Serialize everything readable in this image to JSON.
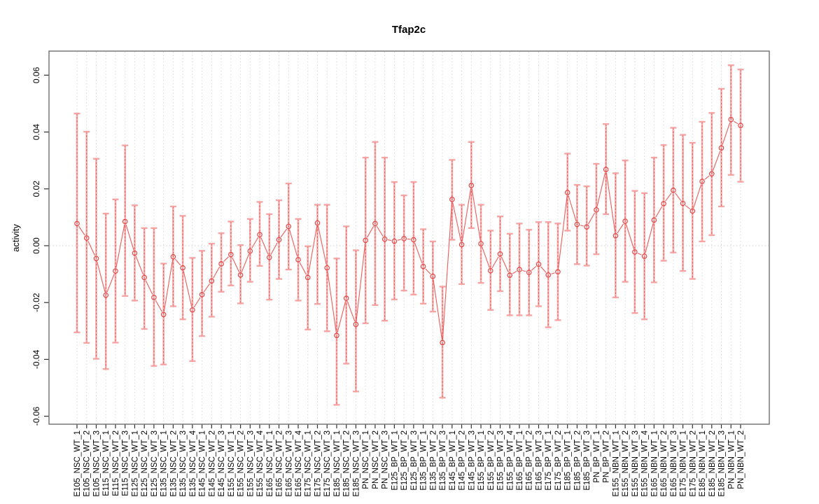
{
  "chart_data": {
    "type": "scatter",
    "title": "Tfap2c",
    "xlabel": "",
    "ylabel": "activity",
    "ylim": [
      -0.065,
      0.065
    ],
    "yticks": [
      -0.06,
      -0.04,
      -0.02,
      0,
      0.02,
      0.04,
      0.06
    ],
    "ytick_labels": [
      "-0.06",
      "-0.04",
      "-0.02",
      "0.00",
      "0.02",
      "0.04",
      "0.06"
    ],
    "grid": "vertical dotted gridline at every category; dotted horizontal reference line at y=0",
    "legend": "none",
    "point_style": "open circles connected by line segments, with asymmetric error bars",
    "categories": [
      "E105_NSC_WT_1",
      "E105_NSC_WT_2",
      "E105_NSC_WT_3",
      "E115_NSC_WT_1",
      "E115_NSC_WT_2",
      "E115_NSC_WT_3",
      "E125_NSC_WT_1",
      "E125_NSC_WT_2",
      "E125_NSC_WT_3",
      "E135_NSC_WT_1",
      "E135_NSC_WT_2",
      "E135_NSC_WT_3",
      "E135_NSC_WT_4",
      "E145_NSC_WT_1",
      "E145_NSC_WT_2",
      "E145_NSC_WT_3",
      "E155_NSC_WT_1",
      "E155_NSC_WT_2",
      "E155_NSC_WT_3",
      "E155_NSC_WT_4",
      "E165_NSC_WT_1",
      "E165_NSC_WT_2",
      "E165_NSC_WT_3",
      "E165_NSC_WT_4",
      "E175_NSC_WT_1",
      "E175_NSC_WT_2",
      "E175_NSC_WT_3",
      "E185_NSC_WT_1",
      "E185_NSC_WT_2",
      "E185_NSC_WT_3",
      "PN_NSC_WT_1",
      "PN_NSC_WT_2",
      "PN_NSC_WT_3",
      "E125_BP_WT_1",
      "E125_BP_WT_2",
      "E125_BP_WT_3",
      "E135_BP_WT_1",
      "E135_BP_WT_2",
      "E135_BP_WT_3",
      "E145_BP_WT_1",
      "E145_BP_WT_2",
      "E145_BP_WT_3",
      "E155_BP_WT_1",
      "E155_BP_WT_2",
      "E155_BP_WT_3",
      "E155_BP_WT_4",
      "E165_BP_WT_1",
      "E165_BP_WT_2",
      "E165_BP_WT_3",
      "E175_BP_WT_1",
      "E175_BP_WT_2",
      "E185_BP_WT_1",
      "E185_BP_WT_2",
      "E185_BP_WT_3",
      "PN_BP_WT_1",
      "PN_BP_WT_2",
      "E155_NBN_WT_1",
      "E155_NBN_WT_2",
      "E155_NBN_WT_3",
      "E155_NBN_WT_4",
      "E165_NBN_WT_1",
      "E165_NBN_WT_2",
      "E165_NBN_WT_3",
      "E175_NBN_WT_1",
      "E175_NBN_WT_2",
      "E185_NBN_WT_1",
      "E185_NBN_WT_2",
      "E185_NBN_WT_3",
      "PN_NBN_WT_1",
      "PN_NBN_WT_2"
    ],
    "series": [
      {
        "name": "activity",
        "values": [
          0.0078,
          0.0027,
          -0.0045,
          -0.0174,
          -0.0089,
          0.0085,
          -0.0026,
          -0.0112,
          -0.0182,
          -0.0242,
          -0.0039,
          -0.0078,
          -0.0226,
          -0.0172,
          -0.0124,
          -0.0064,
          -0.0031,
          -0.0103,
          -0.0019,
          0.0039,
          -0.0041,
          0.0021,
          0.0068,
          -0.0049,
          -0.0112,
          0.008,
          -0.0078,
          -0.0316,
          -0.0185,
          -0.0277,
          0.0019,
          0.0078,
          0.0023,
          0.0016,
          0.0025,
          0.0021,
          -0.0073,
          -0.0108,
          -0.0341,
          0.0163,
          0.0004,
          0.0212,
          0.0007,
          -0.0088,
          -0.0029,
          -0.0104,
          -0.0084,
          -0.0094,
          -0.0065,
          -0.0103,
          -0.0092,
          0.0187,
          0.0075,
          0.0066,
          0.0126,
          0.0268,
          0.0035,
          0.0086,
          -0.0022,
          -0.0037,
          0.009,
          0.0148,
          0.0195,
          0.0149,
          0.0122,
          0.0226,
          0.0253,
          0.0344,
          0.0444,
          0.0423
        ],
        "lower": [
          -0.0305,
          -0.0342,
          -0.0398,
          -0.0434,
          -0.0341,
          -0.0177,
          -0.0193,
          -0.0293,
          -0.0423,
          -0.0418,
          -0.0213,
          -0.0259,
          -0.0406,
          -0.0318,
          -0.025,
          -0.0162,
          -0.014,
          -0.0203,
          -0.0127,
          -0.0071,
          -0.019,
          -0.0117,
          -0.0084,
          -0.0193,
          -0.0295,
          -0.0205,
          -0.0301,
          -0.056,
          -0.0415,
          -0.0513,
          -0.0273,
          -0.0209,
          -0.0264,
          -0.0189,
          -0.0158,
          -0.0172,
          -0.0204,
          -0.0232,
          -0.0535,
          0.0021,
          -0.0135,
          0.0062,
          -0.0131,
          -0.0226,
          -0.016,
          -0.0245,
          -0.0245,
          -0.0245,
          -0.0213,
          -0.0287,
          -0.0262,
          0.0053,
          -0.0065,
          -0.007,
          -0.003,
          0.0111,
          -0.0182,
          -0.0127,
          -0.0237,
          -0.0259,
          -0.0129,
          -0.0053,
          -0.0024,
          -0.0089,
          -0.0117,
          0.0015,
          0.0037,
          0.0138,
          0.0249,
          0.0225
        ],
        "upper": [
          0.0465,
          0.0401,
          0.0306,
          0.0113,
          0.0163,
          0.0353,
          0.0142,
          0.0062,
          0.0062,
          -0.0063,
          0.0138,
          0.0105,
          -0.0043,
          -0.0018,
          0.0007,
          0.0044,
          0.0085,
          0.0002,
          0.0094,
          0.0154,
          0.0111,
          0.016,
          0.0219,
          0.0094,
          -0.0002,
          0.0144,
          0.0144,
          -0.0045,
          0.0068,
          -0.0016,
          0.031,
          0.0365,
          0.031,
          0.0224,
          0.0177,
          0.0224,
          0.0058,
          0.0015,
          -0.0144,
          0.0302,
          0.0144,
          0.0365,
          0.0144,
          0.0053,
          0.0103,
          0.0042,
          0.0078,
          0.0056,
          0.0083,
          0.0083,
          0.0078,
          0.0324,
          0.0214,
          0.0209,
          0.0288,
          0.0428,
          0.0255,
          0.03,
          0.0193,
          0.0185,
          0.031,
          0.0354,
          0.0415,
          0.039,
          0.0362,
          0.0436,
          0.0467,
          0.0552,
          0.0635,
          0.062
        ]
      }
    ],
    "colors": {
      "errorbar": "#f5a0a0",
      "errorbar_dash": "#e05050",
      "point": "#e04848",
      "line": "#ea5c5c",
      "grid": "#d9d9d9",
      "zero_line": "#cccccc",
      "box": "#6e6e6e",
      "tick": "#303030",
      "text": "#000000"
    }
  }
}
